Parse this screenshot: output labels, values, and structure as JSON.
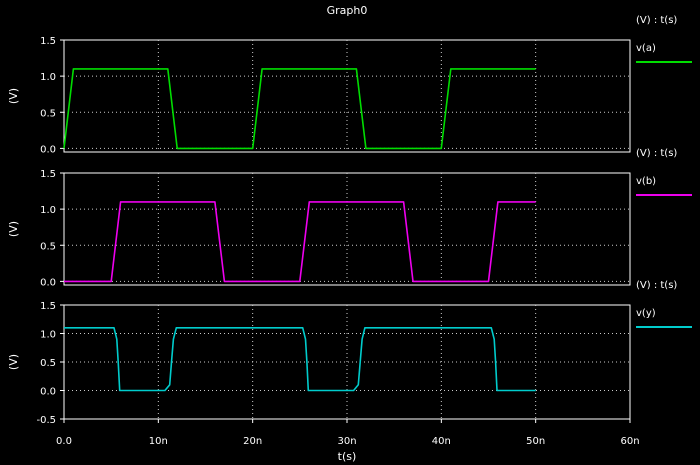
{
  "chart_data": {
    "type": "line",
    "title": "Graph0",
    "xlabel": "t(s)",
    "x_ticks": [
      "0.0",
      "10n",
      "20n",
      "30n",
      "40n",
      "50n",
      "60n"
    ],
    "x_tick_values": [
      0,
      10,
      20,
      30,
      40,
      50,
      60
    ],
    "xlim": [
      0,
      60
    ],
    "x_unit": "ns",
    "grid": true,
    "panels": [
      {
        "ylabel": "(V)",
        "legend_header": "(V) : t(s)",
        "series_name": "v(a)",
        "color": "#00dd00",
        "ylim": [
          -0.05,
          1.5
        ],
        "y_ticks": [
          "0.0",
          "0.5",
          "1.0",
          "1.5"
        ],
        "y_tick_values": [
          0,
          0.5,
          1.0,
          1.5
        ],
        "x": [
          0,
          1,
          11,
          12,
          20,
          21,
          31,
          32,
          40,
          41,
          50
        ],
        "y": [
          0,
          1.1,
          1.1,
          0,
          0,
          1.1,
          1.1,
          0,
          0,
          1.1,
          1.1
        ]
      },
      {
        "ylabel": "(V)",
        "legend_header": "(V) : t(s)",
        "series_name": "v(b)",
        "color": "#ee00ee",
        "ylim": [
          -0.05,
          1.5
        ],
        "y_ticks": [
          "0.0",
          "0.5",
          "1.0",
          "1.5"
        ],
        "y_tick_values": [
          0,
          0.5,
          1.0,
          1.5
        ],
        "x": [
          0,
          5,
          6,
          16,
          17,
          25,
          26,
          36,
          37,
          45,
          46,
          50
        ],
        "y": [
          0,
          0,
          1.1,
          1.1,
          0,
          0,
          1.1,
          1.1,
          0,
          0,
          1.1,
          1.1
        ]
      },
      {
        "ylabel": "(V)",
        "legend_header": "(V) : t(s)",
        "series_name": "v(y)",
        "color": "#00cccc",
        "ylim": [
          -0.5,
          1.5
        ],
        "y_ticks": [
          "-0.5",
          "0.0",
          "0.5",
          "1.0",
          "1.5"
        ],
        "y_tick_values": [
          -0.5,
          0,
          0.5,
          1.0,
          1.5
        ],
        "x": [
          0,
          5.3,
          5.6,
          5.75,
          5.9,
          10.7,
          11.2,
          11.4,
          11.6,
          11.9,
          25.3,
          25.6,
          25.75,
          25.9,
          30.7,
          31.2,
          31.4,
          31.6,
          31.9,
          45.3,
          45.6,
          45.75,
          45.9,
          50
        ],
        "y": [
          1.1,
          1.1,
          0.9,
          0.5,
          0,
          0,
          0.1,
          0.5,
          0.9,
          1.1,
          1.1,
          0.9,
          0.5,
          0,
          0,
          0.1,
          0.5,
          0.9,
          1.1,
          1.1,
          0.9,
          0.5,
          0,
          0
        ]
      }
    ]
  }
}
